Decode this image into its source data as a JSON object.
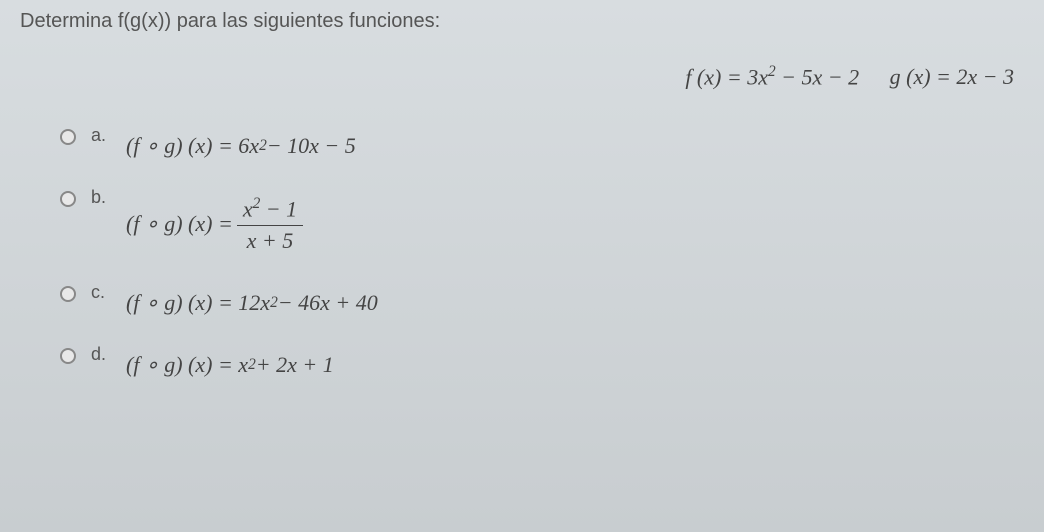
{
  "question": "Determina f(g(x)) para las siguientes funciones:",
  "functions": {
    "f_label": "f (x) = 3x",
    "f_exp": "2",
    "f_rest": " − 5x − 2",
    "g_label": "g (x) = 2x − 3"
  },
  "options": {
    "a": {
      "label": "a.",
      "prefix": "(f ∘ g) (x) = 6x",
      "exp": "2",
      "rest": " − 10x − 5"
    },
    "b": {
      "label": "b.",
      "prefix": "(f ∘ g) (x) = ",
      "num_left": "x",
      "num_exp": "2",
      "num_right": " − 1",
      "den": "x + 5"
    },
    "c": {
      "label": "c.",
      "prefix": "(f ∘ g) (x) = 12x",
      "exp": "2",
      "rest": " − 46x + 40"
    },
    "d": {
      "label": "d.",
      "prefix": "(f ∘ g) (x) = x",
      "exp": "2",
      "rest": " + 2x + 1"
    }
  },
  "colors": {
    "background_top": "#d8dde0",
    "background_bottom": "#c8cdd0",
    "text": "#4a4a4a",
    "radio_border": "#888888"
  }
}
